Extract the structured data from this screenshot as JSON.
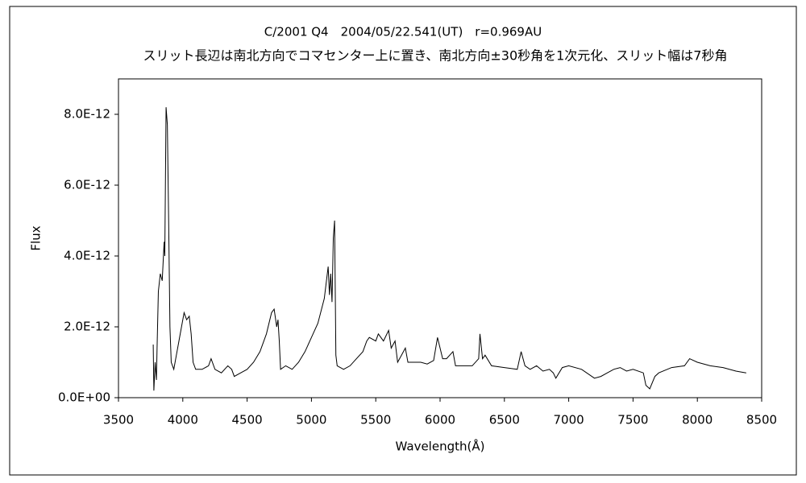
{
  "chart_data": {
    "type": "line",
    "title": "C/2001 Q4　2004/05/22.541(UT)　r=0.969AU",
    "subtitle": "スリット長辺は南北方向でコマセンター上に置き、南北方向±30秒角を1次元化、スリット幅は7秒角",
    "xlabel": "Wavelength(Å)",
    "ylabel": "Flux",
    "xlim": [
      3500,
      8500
    ],
    "xticks": [
      3500,
      4000,
      4500,
      5000,
      5500,
      6000,
      6500,
      7000,
      7500,
      8000,
      8500
    ],
    "ylim": [
      0,
      9e-12
    ],
    "yticks": [
      {
        "value": 0,
        "label": "0.0E+00"
      },
      {
        "value": 2e-12,
        "label": "2.0E-12"
      },
      {
        "value": 4e-12,
        "label": "4.0E-12"
      },
      {
        "value": 6e-12,
        "label": "6.0E-12"
      },
      {
        "value": 8e-12,
        "label": "8.0E-12"
      }
    ],
    "grid": false,
    "series": [
      {
        "color": "#000000",
        "x": [
          3770,
          3775,
          3785,
          3795,
          3800,
          3810,
          3825,
          3840,
          3855,
          3860,
          3870,
          3880,
          3890,
          3900,
          3910,
          3930,
          3950,
          3970,
          3990,
          4010,
          4030,
          4050,
          4065,
          4080,
          4100,
          4150,
          4200,
          4220,
          4250,
          4300,
          4350,
          4380,
          4400,
          4450,
          4500,
          4550,
          4600,
          4650,
          4690,
          4710,
          4730,
          4740,
          4750,
          4760,
          4800,
          4850,
          4900,
          4950,
          5000,
          5050,
          5100,
          5130,
          5140,
          5150,
          5160,
          5170,
          5180,
          5190,
          5200,
          5250,
          5300,
          5350,
          5400,
          5430,
          5450,
          5500,
          5520,
          5560,
          5600,
          5620,
          5650,
          5670,
          5700,
          5730,
          5750,
          5800,
          5850,
          5900,
          5950,
          5980,
          6000,
          6020,
          6050,
          6100,
          6120,
          6200,
          6250,
          6300,
          6310,
          6330,
          6350,
          6400,
          6500,
          6600,
          6630,
          6660,
          6700,
          6750,
          6800,
          6850,
          6880,
          6900,
          6950,
          7000,
          7100,
          7200,
          7250,
          7300,
          7350,
          7400,
          7450,
          7500,
          7580,
          7600,
          7630,
          7670,
          7700,
          7800,
          7900,
          7940,
          8000,
          8100,
          8200,
          8300,
          8380
        ],
        "values": [
          1.5e-12,
          2e-13,
          1e-12,
          5e-13,
          1.4e-12,
          3e-12,
          3.5e-12,
          3.3e-12,
          4.4e-12,
          4e-12,
          8.2e-12,
          7.7e-12,
          5e-12,
          2e-12,
          1e-12,
          8e-13,
          1.2e-12,
          1.6e-12,
          2e-12,
          2.4e-12,
          2.2e-12,
          2.3e-12,
          1.8e-12,
          1e-12,
          8e-13,
          8e-13,
          9e-13,
          1.1e-12,
          8e-13,
          7e-13,
          9e-13,
          8e-13,
          6e-13,
          7e-13,
          8e-13,
          1e-12,
          1.3e-12,
          1.8e-12,
          2.4e-12,
          2.5e-12,
          2e-12,
          2.2e-12,
          1.6e-12,
          8e-13,
          9e-13,
          8e-13,
          1e-12,
          1.3e-12,
          1.7e-12,
          2.1e-12,
          2.8e-12,
          3.7e-12,
          2.9e-12,
          3.5e-12,
          2.7e-12,
          4.5e-12,
          5e-12,
          1.2e-12,
          9e-13,
          8e-13,
          9e-13,
          1.1e-12,
          1.3e-12,
          1.6e-12,
          1.7e-12,
          1.6e-12,
          1.8e-12,
          1.6e-12,
          1.9e-12,
          1.4e-12,
          1.6e-12,
          1e-12,
          1.2e-12,
          1.4e-12,
          1e-12,
          1e-12,
          1e-12,
          9.5e-13,
          1.05e-12,
          1.7e-12,
          1.4e-12,
          1.1e-12,
          1.1e-12,
          1.3e-12,
          9e-13,
          9e-13,
          9e-13,
          1.1e-12,
          1.8e-12,
          1.1e-12,
          1.2e-12,
          9e-13,
          8.5e-13,
          8e-13,
          1.3e-12,
          9e-13,
          8e-13,
          9e-13,
          7.5e-13,
          8e-13,
          7e-13,
          5.5e-13,
          8.5e-13,
          9e-13,
          8e-13,
          5.5e-13,
          6e-13,
          7e-13,
          8e-13,
          8.5e-13,
          7.5e-13,
          8e-13,
          7e-13,
          3.5e-13,
          2.5e-13,
          6e-13,
          7e-13,
          8.5e-13,
          9e-13,
          1.1e-12,
          1e-12,
          9e-13,
          8.5e-13,
          7.5e-13,
          7e-13
        ]
      }
    ]
  }
}
